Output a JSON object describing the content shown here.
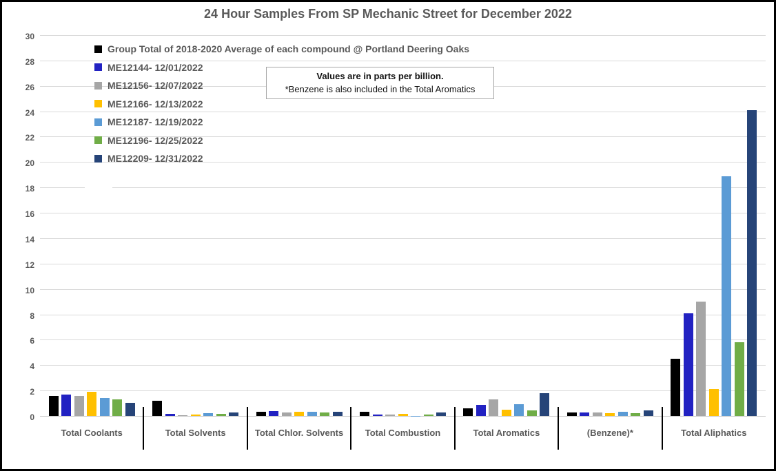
{
  "window": {
    "background": "#FFFFFF",
    "border_color": "#000000"
  },
  "chart_data": {
    "type": "bar",
    "title": "24 Hour Samples From SP Mechanic Street for December 2022",
    "categories": [
      "Total Coolants",
      "Total Solvents",
      "Total Chlor. Solvents",
      "Total Combustion",
      "Total Aromatics",
      "(Benzene)*",
      "Total Aliphatics"
    ],
    "series": [
      {
        "name": "Group Total of 2018-2020 Average of each compound @ Portland Deering Oaks",
        "color": "#000000",
        "values": [
          1.55,
          1.2,
          0.35,
          0.3,
          0.6,
          0.25,
          4.5
        ]
      },
      {
        "name": "ME12144- 12/01/2022",
        "color": "#2222C2",
        "values": [
          1.7,
          0.15,
          0.4,
          0.1,
          0.85,
          0.25,
          8.1
        ]
      },
      {
        "name": "ME12156- 12/07/2022",
        "color": "#A6A6A6",
        "values": [
          1.6,
          0.08,
          0.25,
          0.1,
          1.3,
          0.25,
          9.0
        ]
      },
      {
        "name": "ME12166- 12/13/2022",
        "color": "#FFC000",
        "values": [
          1.9,
          0.1,
          0.3,
          0.18,
          0.5,
          0.2,
          2.1
        ]
      },
      {
        "name": "ME12187- 12/19/2022",
        "color": "#5B9BD5",
        "values": [
          1.4,
          0.2,
          0.3,
          0.02,
          0.95,
          0.3,
          18.9
        ]
      },
      {
        "name": "ME12196- 12/25/2022",
        "color": "#70AD47",
        "values": [
          1.3,
          0.15,
          0.25,
          0.1,
          0.45,
          0.2,
          5.8
        ]
      },
      {
        "name": "ME12209- 12/31/2022",
        "color": "#264478",
        "values": [
          1.05,
          0.25,
          0.3,
          0.28,
          1.8,
          0.45,
          24.1
        ]
      }
    ],
    "ylim": [
      0,
      30
    ],
    "yticks": [
      0,
      2,
      4,
      6,
      8,
      10,
      12,
      14,
      16,
      18,
      20,
      22,
      24,
      26,
      28,
      30
    ],
    "grid": true,
    "legend_position": "top-left",
    "annotation": {
      "line1": "Values are in parts per billion.",
      "line2": "*Benzene is also included in the Total Aromatics"
    }
  },
  "colors": {
    "gridline": "#D9D9D9",
    "axis_text": "#595959",
    "title_text": "#595959",
    "category_text": "#595959",
    "legend_text": "#595959",
    "separator": "#000000",
    "annotation_border": "#A6A6A6"
  }
}
